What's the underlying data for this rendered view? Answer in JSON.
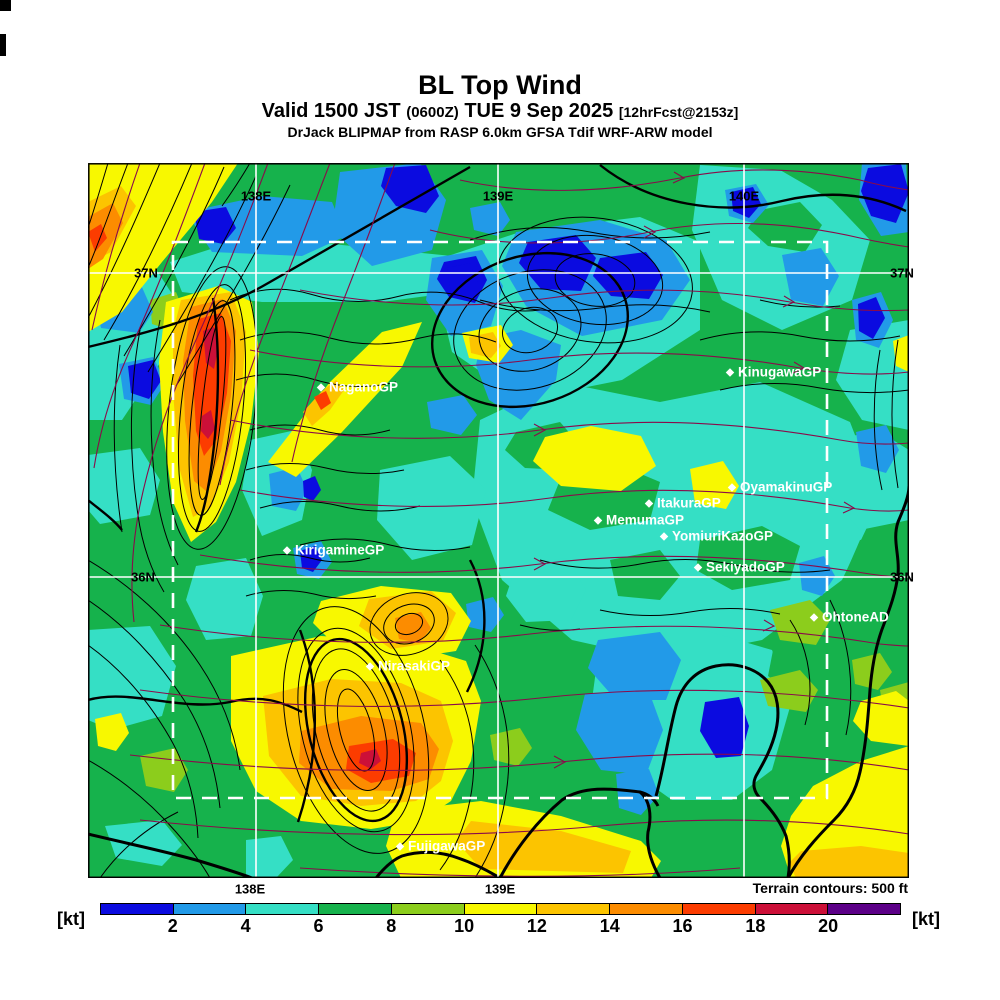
{
  "header": {
    "title": "BL Top Wind",
    "valid_prefix": "Valid 1500 JST",
    "valid_utc": "(0600Z)",
    "valid_date": "TUE 9 Sep 2025",
    "forecast_tag": "[12hrFcst@2153z]",
    "model_line": "DrJack BLIPMAP from RASP 6.0km GFSA Tdif WRF-ARW model"
  },
  "map": {
    "grid": {
      "lon_labels": [
        "138E",
        "139E",
        "140E"
      ],
      "lat_labels": [
        "37N",
        "36N"
      ],
      "bottom_lon_labels": [
        "138E",
        "139E"
      ]
    },
    "sites": [
      {
        "label": "NaganoGP"
      },
      {
        "label": "KinugawaGP"
      },
      {
        "label": "OyamakinuGP"
      },
      {
        "label": "ItakuraGP"
      },
      {
        "label": "MemumaGP"
      },
      {
        "label": "YomiuriKazoGP"
      },
      {
        "label": "SekiyadoGP"
      },
      {
        "label": "KirigamineGP"
      },
      {
        "label": "OhtoneAD"
      },
      {
        "label": "NirasakiGP"
      },
      {
        "label": "FujigawaGP"
      }
    ],
    "terrain_note": "Terrain contours: 500 ft"
  },
  "colorbar": {
    "unit_label": "[kt]",
    "ticks": [
      "2",
      "4",
      "6",
      "8",
      "10",
      "12",
      "14",
      "16",
      "18",
      "20"
    ],
    "segment_colors": [
      "#0b0be0",
      "#229ae8",
      "#35dfc5",
      "#16b24c",
      "#8ccd1c",
      "#f8f800",
      "#fcc400",
      "#fc8c00",
      "#fc3c00",
      "#cc1038",
      "#5c0088"
    ]
  },
  "chart_data": {
    "type": "heatmap",
    "title": "BL Top Wind",
    "units": "kt",
    "scale_boundaries": [
      2,
      4,
      6,
      8,
      10,
      12,
      14,
      16,
      18,
      20
    ],
    "scale_colors": [
      "#0b0be0",
      "#229ae8",
      "#35dfc5",
      "#16b24c",
      "#8ccd1c",
      "#f8f800",
      "#fcc400",
      "#fc8c00",
      "#fc3c00",
      "#cc1038",
      "#5c0088"
    ],
    "lon_gridlines": [
      "138E",
      "139E",
      "140E"
    ],
    "lat_gridlines": [
      "37N",
      "36N"
    ],
    "overlay_legend": "Terrain contours: 500 ft"
  }
}
